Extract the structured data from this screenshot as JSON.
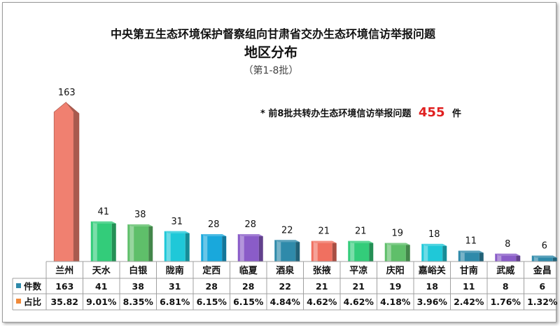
{
  "chart_data": {
    "type": "bar",
    "title": "中央第五生态环境保护督察组向甘肃省交办生态环境信访举报问题",
    "subtitle": "地区分布",
    "batch_note": "（第1-8批）",
    "annotation": {
      "prefix": "* 前8批共转办生态环境信访举报问题",
      "total": "455",
      "suffix": "件"
    },
    "categories": [
      "兰州",
      "天水",
      "白银",
      "陇南",
      "定西",
      "临夏",
      "酒泉",
      "张掖",
      "平凉",
      "庆阳",
      "嘉峪关",
      "甘南",
      "武威",
      "金昌"
    ],
    "values": [
      163,
      41,
      38,
      31,
      28,
      28,
      22,
      21,
      21,
      19,
      18,
      11,
      8,
      6
    ],
    "value_labels": [
      "163",
      "41",
      "38",
      "31",
      "28",
      "28",
      "22",
      "21",
      "21",
      "19",
      "18",
      "11",
      "8",
      "6"
    ],
    "bar_colors": [
      "#f08070",
      "#33cc7a",
      "#5fbf6a",
      "#1fc8d8",
      "#19a8dc",
      "#8a5cc8",
      "#2f8aaa",
      "#f07060",
      "#33cc7a",
      "#5fbf6a",
      "#1fc8d8",
      "#2f8aaa",
      "#8a5cc8",
      "#2f8aaa"
    ],
    "table": {
      "rows": [
        {
          "label": "件数",
          "marker_color": "#2f8aaa",
          "cells": [
            "163",
            "41",
            "38",
            "31",
            "28",
            "28",
            "22",
            "21",
            "21",
            "19",
            "18",
            "11",
            "8",
            "6"
          ]
        },
        {
          "label": "占比",
          "marker_color": "#f08a3a",
          "cells": [
            "35.82",
            "9.01%",
            "8.35%",
            "6.81%",
            "6.15%",
            "6.15%",
            "4.84%",
            "4.62%",
            "4.62%",
            "4.18%",
            "3.96%",
            "2.42%",
            "1.76%",
            "1.32%"
          ]
        }
      ]
    },
    "ylim": [
      0,
      170
    ],
    "grid": false,
    "legend": "table-bottom-left"
  },
  "colors": {
    "annotation_total": "#e02020",
    "table_border": "#a0a0a0"
  }
}
